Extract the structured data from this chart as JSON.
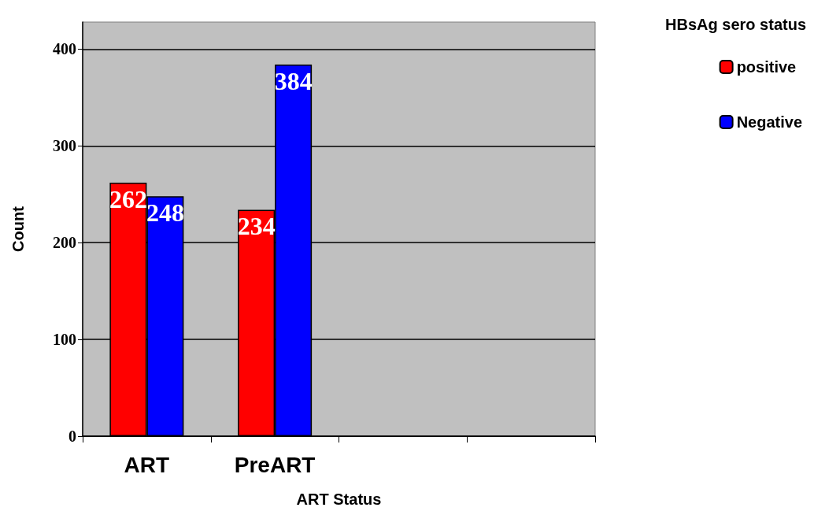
{
  "chart_data": {
    "type": "bar",
    "xlabel": "ART Status",
    "ylabel": "Count",
    "legend_title": "HBsAg sero status",
    "categories": [
      "ART",
      "PreART",
      null,
      null
    ],
    "series": [
      {
        "name": "positive",
        "color": "#ff0000",
        "values": [
          262,
          234,
          null,
          null
        ]
      },
      {
        "name": "Negative",
        "color": "#0000ff",
        "values": [
          248,
          384,
          null,
          null
        ]
      }
    ],
    "ylim": [
      0,
      428
    ],
    "yticks": [
      0,
      100,
      200,
      300,
      400
    ],
    "grid": "y",
    "legend": "top right",
    "data_labels": true
  }
}
